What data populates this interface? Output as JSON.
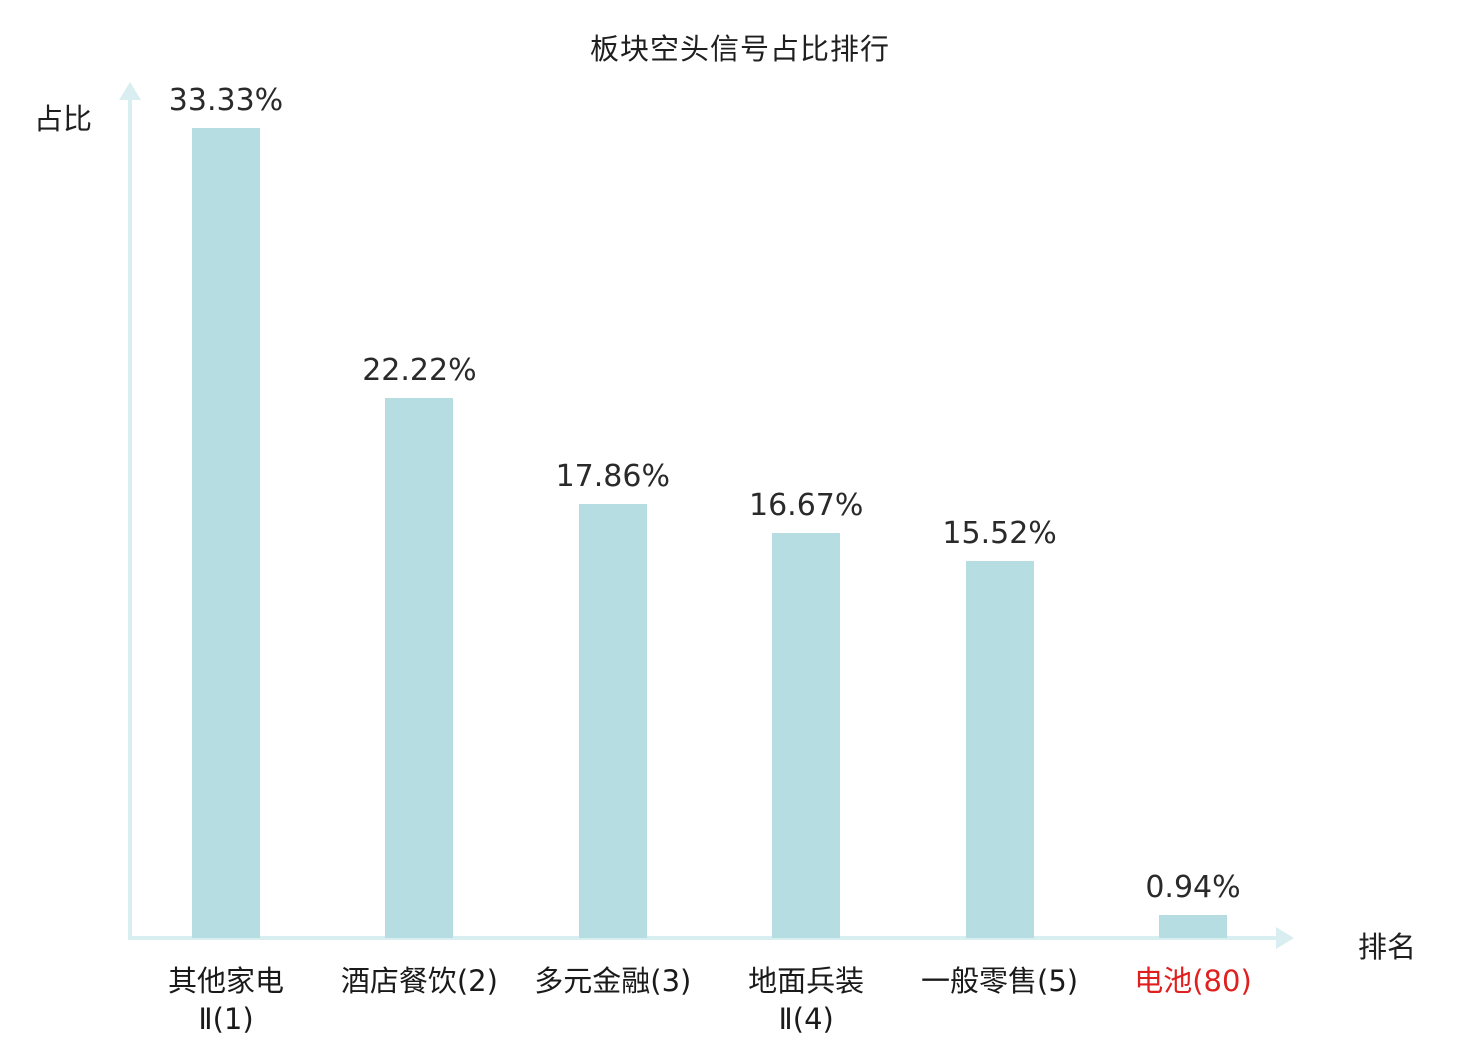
{
  "title": "板块空头信号占比排行",
  "chart_data": {
    "type": "bar",
    "categories": [
      [
        "其他家电",
        "Ⅱ(1)"
      ],
      [
        "酒店餐饮(2)"
      ],
      [
        "多元金融(3)"
      ],
      [
        "地面兵装",
        "Ⅱ(4)"
      ],
      [
        "一般零售(5)"
      ],
      [
        "电池(80)"
      ]
    ],
    "values": [
      33.33,
      22.22,
      17.86,
      16.67,
      15.52,
      0.94
    ],
    "value_labels": [
      "33.33%",
      "22.22%",
      "17.86%",
      "16.67%",
      "15.52%",
      "0.94%"
    ],
    "xlabel": "排名",
    "ylabel": "占比",
    "ylim": [
      0,
      35
    ],
    "grid": false,
    "legend": "none",
    "bar_color": "#b5dde2",
    "axis_color": "#d9eef0",
    "label_color": "#1a1a1a",
    "value_label_color": "#2a2a2a",
    "highlight_index": 5,
    "highlight_color": "#e01f1f"
  }
}
